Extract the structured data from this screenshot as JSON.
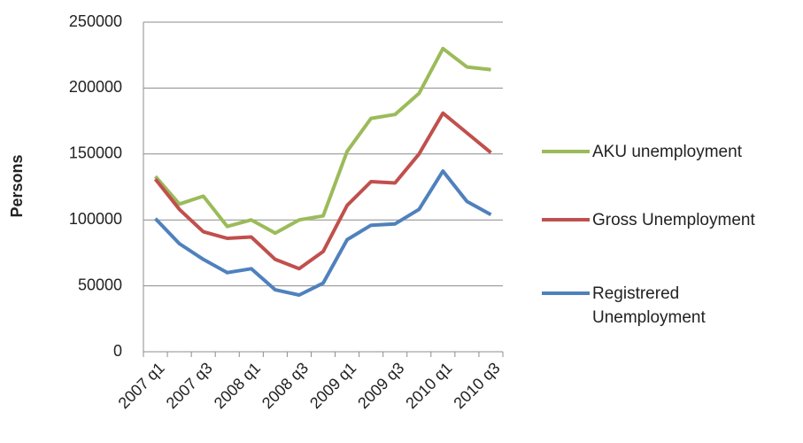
{
  "chart_data": {
    "type": "line",
    "y_label": "Persons",
    "categories": [
      "2007 q1",
      null,
      "2007 q3",
      null,
      "2008 q1",
      null,
      "2008 q3",
      null,
      "2009 q1",
      null,
      "2009 q3",
      null,
      "2010 q1",
      null,
      "2010 q3"
    ],
    "series": [
      {
        "name": "AKU unemployment",
        "color": "#9bbb59",
        "values": [
          133000,
          112000,
          118000,
          95000,
          100000,
          90000,
          100000,
          103000,
          152000,
          177000,
          180000,
          196000,
          230000,
          216000,
          214000
        ]
      },
      {
        "name": "Gross Unemployment",
        "color": "#c0504d",
        "values": [
          131000,
          108000,
          91000,
          86000,
          87000,
          70000,
          63000,
          76000,
          111000,
          129000,
          128000,
          150000,
          181000,
          166000,
          151000
        ]
      },
      {
        "name": "Registrered Unemployment",
        "color": "#4f81bd",
        "values": [
          101000,
          82000,
          70000,
          60000,
          63000,
          47000,
          43000,
          52000,
          85000,
          96000,
          97000,
          108000,
          137000,
          114000,
          104000
        ]
      }
    ],
    "ylim": [
      0,
      250000
    ],
    "yticks": [
      0,
      50000,
      100000,
      150000,
      200000,
      250000
    ],
    "grid": true
  }
}
